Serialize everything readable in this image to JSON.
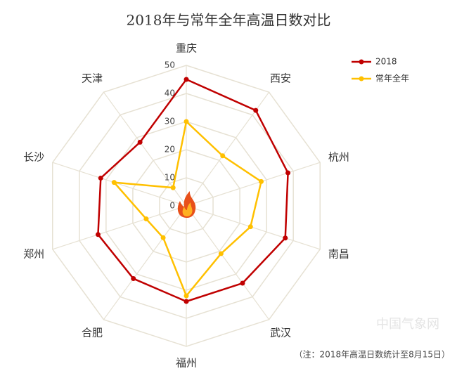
{
  "chart_data": {
    "type": "radar",
    "title": "2018年与常年全年高温日数对比",
    "categories": [
      "重庆",
      "西安",
      "杭州",
      "南昌",
      "武汉",
      "福州",
      "合肥",
      "郑州",
      "长沙",
      "天津"
    ],
    "series": [
      {
        "name": "2018",
        "color": "#c00000",
        "values": [
          45,
          42,
          38,
          37,
          34,
          34,
          32,
          33,
          32,
          28
        ]
      },
      {
        "name": "常年全年",
        "color": "#ffc000",
        "values": [
          30,
          22,
          28,
          24,
          21,
          32,
          14,
          15,
          27,
          8
        ]
      }
    ],
    "ylim": [
      0,
      50
    ],
    "yticks": [
      0,
      10,
      20,
      30,
      40,
      50
    ],
    "grid": true,
    "legend": "top-right",
    "note": "（注：2018年高温日数统计至8月15日）",
    "watermark": "中国气象网"
  }
}
